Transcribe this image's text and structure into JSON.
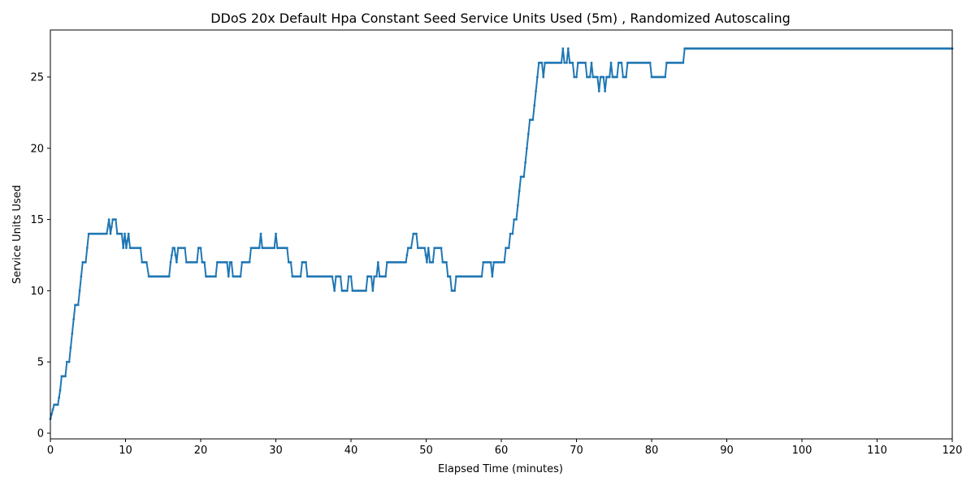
{
  "chart_data": {
    "type": "line",
    "title": "DDoS 20x Default Hpa Constant Seed Service Units Used (5m) , Randomized Autoscaling",
    "xlabel": "Elapsed Time (minutes)",
    "ylabel": "Service Units Used",
    "xlim": [
      0,
      120
    ],
    "ylim": [
      -0.4,
      28.3
    ],
    "xticks": [
      0,
      10,
      20,
      30,
      40,
      50,
      60,
      70,
      80,
      90,
      100,
      110,
      120
    ],
    "yticks": [
      0,
      5,
      10,
      15,
      20,
      25
    ],
    "grid": false,
    "legend": "none",
    "series": [
      {
        "color": "#1f77b4",
        "marker": "dot",
        "points": [
          [
            0,
            1
          ],
          [
            0.5,
            2
          ],
          [
            1,
            2
          ],
          [
            1.3,
            3
          ],
          [
            1.5,
            4
          ],
          [
            2,
            4
          ],
          [
            2.2,
            5
          ],
          [
            2.5,
            5
          ],
          [
            2.7,
            6
          ],
          [
            2.9,
            7
          ],
          [
            3.1,
            8
          ],
          [
            3.3,
            9
          ],
          [
            3.7,
            9
          ],
          [
            3.9,
            10
          ],
          [
            4.1,
            11
          ],
          [
            4.3,
            12
          ],
          [
            4.7,
            12
          ],
          [
            4.9,
            13
          ],
          [
            5.1,
            14
          ],
          [
            7.5,
            14
          ],
          [
            7.8,
            15
          ],
          [
            8.0,
            14
          ],
          [
            8.3,
            15
          ],
          [
            8.7,
            15
          ],
          [
            8.9,
            14
          ],
          [
            9.5,
            14
          ],
          [
            9.7,
            13
          ],
          [
            9.9,
            14
          ],
          [
            10.1,
            13
          ],
          [
            10.4,
            14
          ],
          [
            10.6,
            13
          ],
          [
            11,
            13
          ],
          [
            12,
            13
          ],
          [
            12.2,
            12
          ],
          [
            12.8,
            12
          ],
          [
            13.1,
            11
          ],
          [
            15.8,
            11
          ],
          [
            16,
            12
          ],
          [
            16.3,
            13
          ],
          [
            16.5,
            13
          ],
          [
            16.8,
            12
          ],
          [
            17,
            13
          ],
          [
            17.9,
            13
          ],
          [
            18.1,
            12
          ],
          [
            19.5,
            12
          ],
          [
            19.7,
            13
          ],
          [
            20,
            13
          ],
          [
            20.2,
            12
          ],
          [
            20.5,
            12
          ],
          [
            20.7,
            11
          ],
          [
            22,
            11
          ],
          [
            22.2,
            12
          ],
          [
            23.5,
            12
          ],
          [
            23.7,
            11
          ],
          [
            23.9,
            12
          ],
          [
            24.1,
            12
          ],
          [
            24.3,
            11
          ],
          [
            25.3,
            11
          ],
          [
            25.5,
            12
          ],
          [
            26.5,
            12
          ],
          [
            26.7,
            13
          ],
          [
            27.8,
            13
          ],
          [
            28,
            14
          ],
          [
            28.2,
            13
          ],
          [
            29.8,
            13
          ],
          [
            30,
            14
          ],
          [
            30.2,
            13
          ],
          [
            31.5,
            13
          ],
          [
            31.7,
            12
          ],
          [
            32,
            12
          ],
          [
            32.2,
            11
          ],
          [
            33.3,
            11
          ],
          [
            33.5,
            12
          ],
          [
            34,
            12
          ],
          [
            34.2,
            11
          ],
          [
            37.5,
            11
          ],
          [
            37.8,
            10
          ],
          [
            38,
            11
          ],
          [
            38.6,
            11
          ],
          [
            38.8,
            10
          ],
          [
            39.5,
            10
          ],
          [
            39.7,
            11
          ],
          [
            40,
            11
          ],
          [
            40.2,
            10
          ],
          [
            42,
            10
          ],
          [
            42.2,
            11
          ],
          [
            42.7,
            11
          ],
          [
            42.9,
            10
          ],
          [
            43.1,
            11
          ],
          [
            43.4,
            11
          ],
          [
            43.6,
            12
          ],
          [
            43.8,
            11
          ],
          [
            44.6,
            11
          ],
          [
            44.8,
            12
          ],
          [
            47.3,
            12
          ],
          [
            47.6,
            13
          ],
          [
            48,
            13
          ],
          [
            48.3,
            14
          ],
          [
            48.7,
            14
          ],
          [
            48.9,
            13
          ],
          [
            49.8,
            13
          ],
          [
            50.1,
            12
          ],
          [
            50.3,
            13
          ],
          [
            50.5,
            12
          ],
          [
            50.9,
            12
          ],
          [
            51.1,
            13
          ],
          [
            52,
            13
          ],
          [
            52.2,
            12
          ],
          [
            52.7,
            12
          ],
          [
            52.9,
            11
          ],
          [
            53.2,
            11
          ],
          [
            53.4,
            10
          ],
          [
            53.8,
            10
          ],
          [
            54.0,
            11
          ],
          [
            57.4,
            11
          ],
          [
            57.6,
            12
          ],
          [
            58.6,
            12
          ],
          [
            58.8,
            11
          ],
          [
            59.0,
            12
          ],
          [
            60.4,
            12
          ],
          [
            60.6,
            13
          ],
          [
            61,
            13
          ],
          [
            61.2,
            14
          ],
          [
            61.5,
            14
          ],
          [
            61.7,
            15
          ],
          [
            62,
            15
          ],
          [
            62.2,
            16
          ],
          [
            62.4,
            17
          ],
          [
            62.6,
            18
          ],
          [
            63,
            18
          ],
          [
            63.2,
            19
          ],
          [
            63.4,
            20
          ],
          [
            63.6,
            21
          ],
          [
            63.8,
            22
          ],
          [
            64.2,
            22
          ],
          [
            64.4,
            23
          ],
          [
            64.6,
            24
          ],
          [
            64.8,
            25
          ],
          [
            65.0,
            26
          ],
          [
            65.4,
            26
          ],
          [
            65.6,
            25
          ],
          [
            65.8,
            26
          ],
          [
            68.0,
            26
          ],
          [
            68.2,
            27
          ],
          [
            68.4,
            26
          ],
          [
            68.7,
            26
          ],
          [
            68.9,
            27
          ],
          [
            69.1,
            26
          ],
          [
            69.5,
            26
          ],
          [
            69.7,
            25
          ],
          [
            70,
            25
          ],
          [
            70.2,
            26
          ],
          [
            71.2,
            26
          ],
          [
            71.4,
            25
          ],
          [
            71.8,
            25
          ],
          [
            72.0,
            26
          ],
          [
            72.2,
            25
          ],
          [
            72.8,
            25
          ],
          [
            73,
            24
          ],
          [
            73.2,
            25
          ],
          [
            73.6,
            25
          ],
          [
            73.8,
            24
          ],
          [
            74,
            25
          ],
          [
            74.4,
            25
          ],
          [
            74.6,
            26
          ],
          [
            74.8,
            25
          ],
          [
            75.4,
            25
          ],
          [
            75.6,
            26
          ],
          [
            76.0,
            26
          ],
          [
            76.2,
            25
          ],
          [
            76.6,
            25
          ],
          [
            76.8,
            26
          ],
          [
            79.8,
            26
          ],
          [
            80,
            25
          ],
          [
            81.8,
            25
          ],
          [
            82,
            26
          ],
          [
            84.2,
            26
          ],
          [
            84.4,
            27
          ],
          [
            120,
            27
          ]
        ]
      }
    ]
  }
}
